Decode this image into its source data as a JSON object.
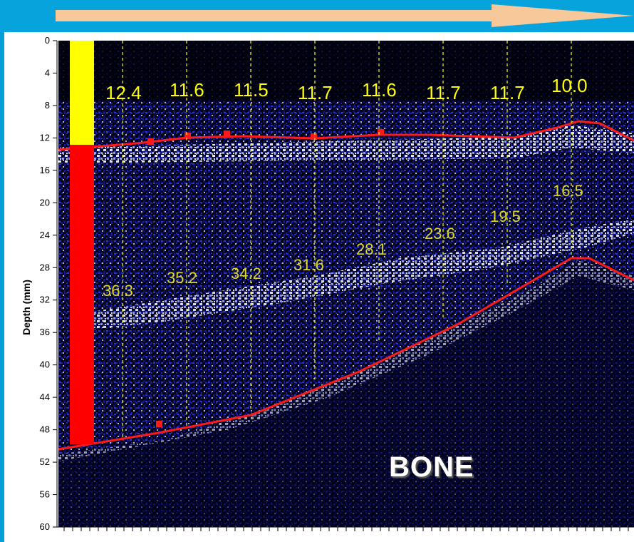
{
  "header": {
    "arrow_color": "#f7c99a"
  },
  "axis": {
    "label": "Depth (mm)",
    "ticks": [
      "0",
      "4",
      "8",
      "12",
      "16",
      "20",
      "24",
      "28",
      "32",
      "36",
      "40",
      "44",
      "48",
      "52",
      "56",
      "60"
    ]
  },
  "colors": {
    "fat_layer": "#ffff00",
    "muscle_layer": "#ff0000",
    "boundary": "#ff1a1a",
    "background": "#000000"
  },
  "fat_thickness": [
    "12.4",
    "11.6",
    "11.5",
    "11.7",
    "11.6",
    "11.7",
    "11.7",
    "10.0"
  ],
  "muscle_thickness": [
    "36.3",
    "35.2",
    "34.2",
    "31.6",
    "28.1",
    "23.6",
    "19.5",
    "16.5"
  ],
  "bone_label": "BONE"
}
